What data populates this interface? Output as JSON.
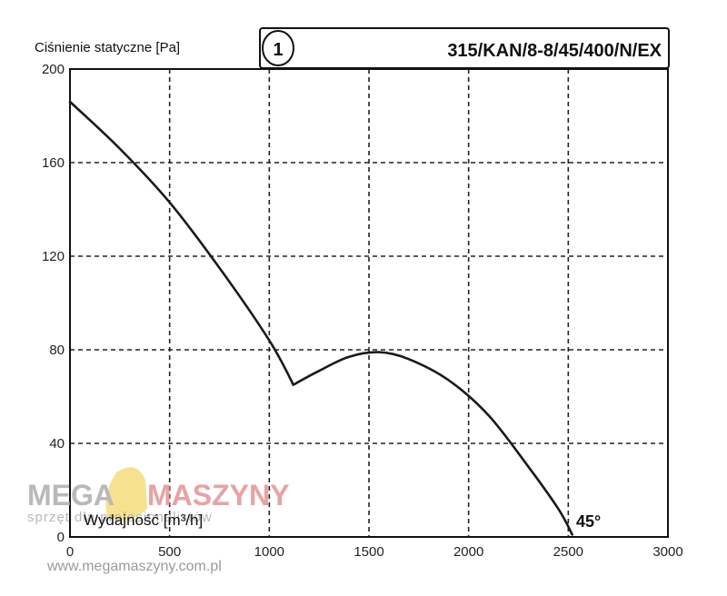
{
  "chart_data": {
    "type": "line",
    "ylabel": "Ciśnienie statyczne [Pa]",
    "xlabel": "Wydajność [m³/h]",
    "model_number": "1",
    "model_title": "315/KAN/8-8/45/400/N/EX",
    "annotation": "45°",
    "xlim": [
      0,
      3000
    ],
    "ylim": [
      0,
      200
    ],
    "x_ticks": [
      0,
      500,
      1000,
      1500,
      2000,
      2500,
      3000
    ],
    "y_ticks": [
      0,
      40,
      80,
      120,
      160,
      200
    ],
    "grid": true,
    "series": [
      {
        "x": [
          0,
          250,
          500,
          750,
          1000,
          1120,
          1250,
          1400,
          1550,
          1700,
          1900,
          2100,
          2300,
          2450,
          2520
        ],
        "values": [
          186,
          166,
          143,
          115,
          84,
          65,
          71,
          77,
          79,
          76,
          67,
          52,
          30,
          12,
          1
        ]
      }
    ]
  },
  "watermark": {
    "brand_left": "MEGA",
    "brand_right": "MASZYNY",
    "tagline": "sprzęt dla profesjonalistów",
    "url": "www.megamaszyny.com.pl",
    "accent_color": "#f3d768"
  }
}
